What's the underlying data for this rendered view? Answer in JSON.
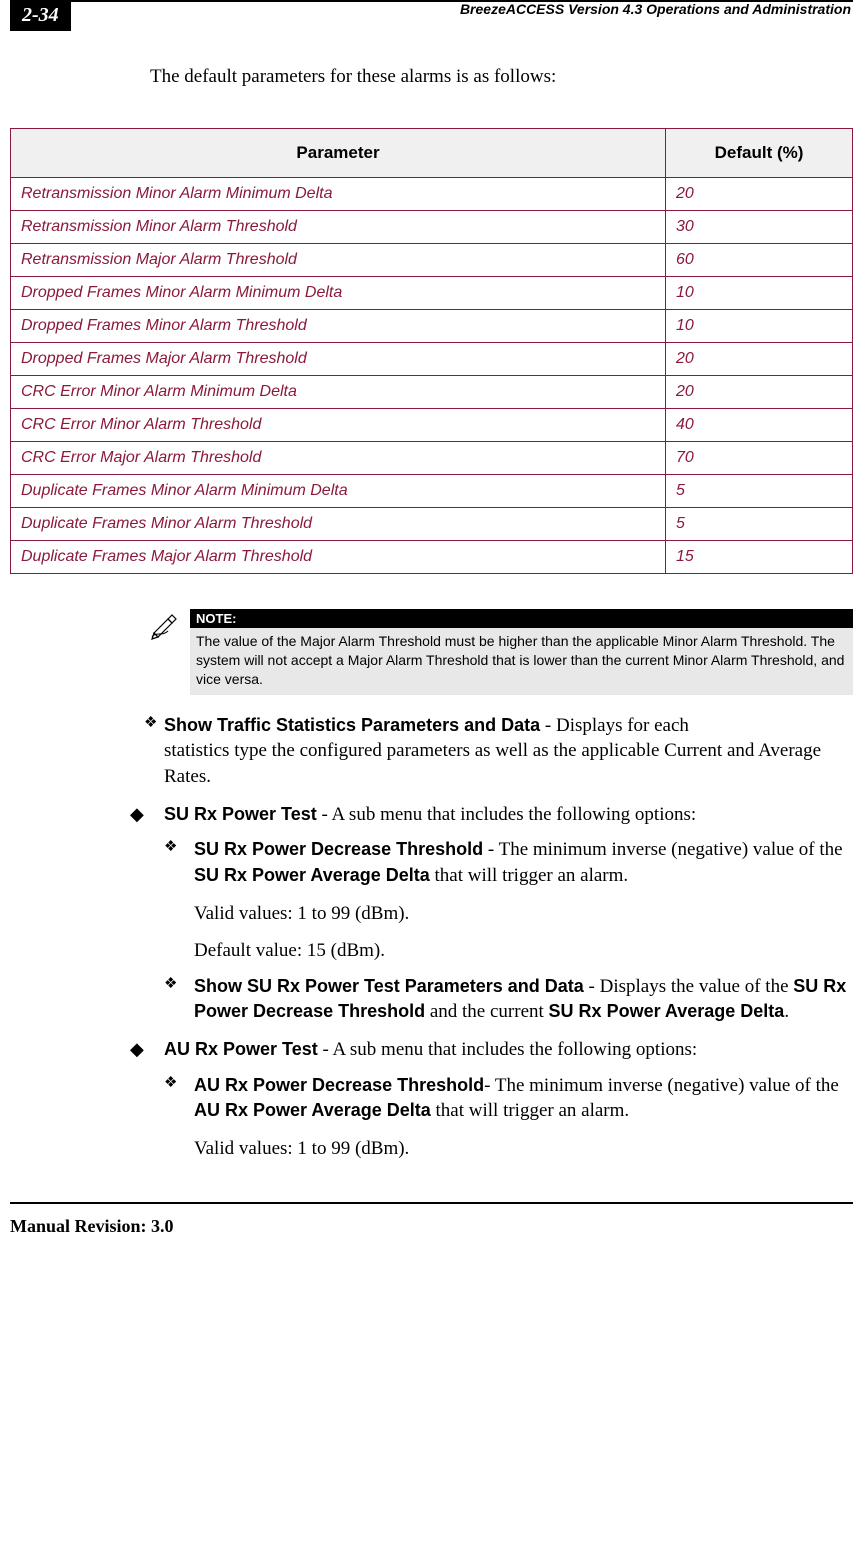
{
  "page_number": "2-34",
  "doc_title": "BreezeACCESS Version 4.3 Operations and Administration",
  "intro": "The default parameters for these alarms is as follows:",
  "table": {
    "headers": {
      "param": "Parameter",
      "default": "Default (%)"
    },
    "header_bg": "#f0f0f0",
    "border_color": "#8a1a3a",
    "text_color": "#8a1a3a",
    "rows": [
      {
        "param": "Retransmission Minor Alarm Minimum Delta",
        "default": "20"
      },
      {
        "param": "Retransmission Minor Alarm Threshold",
        "default": "30"
      },
      {
        "param": "Retransmission Major Alarm Threshold",
        "default": "60"
      },
      {
        "param": "Dropped Frames Minor Alarm Minimum Delta",
        "default": "10"
      },
      {
        "param": "Dropped Frames Minor Alarm Threshold",
        "default": "10"
      },
      {
        "param": "Dropped Frames Major Alarm Threshold",
        "default": "20"
      },
      {
        "param": "CRC Error Minor Alarm Minimum Delta",
        "default": "20"
      },
      {
        "param": "CRC Error Minor Alarm Threshold",
        "default": "40"
      },
      {
        "param": "CRC Error Major Alarm Threshold",
        "default": "70"
      },
      {
        "param": "Duplicate Frames Minor Alarm Minimum Delta",
        "default": "5"
      },
      {
        "param": "Duplicate Frames Minor Alarm Threshold",
        "default": "5"
      },
      {
        "param": "Duplicate Frames Major Alarm Threshold",
        "default": "15"
      }
    ]
  },
  "note": {
    "label": "NOTE:",
    "text": "The value of the Major Alarm Threshold must be higher than the applicable Minor Alarm Threshold. The system will not accept a Major Alarm Threshold that is lower than the current Minor Alarm Threshold, and vice versa."
  },
  "items": {
    "show_traffic": {
      "bold": "Show Traffic Statistics Parameters and Data",
      "rest": " - Displays for each",
      "line2": "statistics type the configured parameters as well as the applicable Current and Average Rates."
    },
    "su_rx": {
      "bold": "SU Rx Power Test",
      "rest": " - A sub menu that includes the following options:",
      "decrease": {
        "bold": "SU Rx Power Decrease Threshold",
        "rest_a": " - The minimum inverse (negative) value of the ",
        "bold2": "SU Rx Power Average Delta",
        "rest_b": " that will trigger an alarm.",
        "valid": "Valid values: 1 to 99 (dBm).",
        "default": "Default value: 15 (dBm)."
      },
      "show": {
        "bold": "Show SU Rx Power Test Parameters and Data",
        "rest_a": " - Displays the value of the ",
        "bold2": "SU Rx Power Decrease Threshold",
        "rest_b": " and the current ",
        "bold3": "SU Rx Power Average Delta",
        "rest_c": "."
      }
    },
    "au_rx": {
      "bold": "AU Rx Power Test",
      "rest": " - A sub menu that includes the following options:",
      "decrease": {
        "bold": "AU Rx Power Decrease Threshold",
        "rest_a": "- The minimum inverse (negative) value of the ",
        "bold2": "AU Rx Power Average Delta",
        "rest_b": " that will trigger an alarm.",
        "valid": "Valid values: 1 to 99 (dBm)."
      }
    }
  },
  "footer": "Manual Revision: 3.0"
}
